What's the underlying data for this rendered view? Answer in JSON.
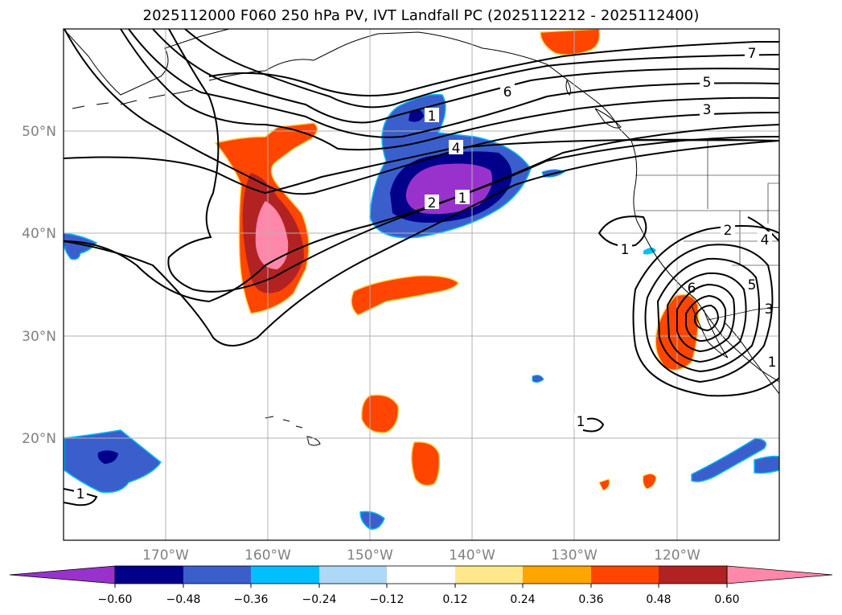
{
  "title": "2025112000 F060 250 hPa PV, IVT Landfall PC (2025112212 - 2025112400)",
  "lat_labels": [
    "50°N",
    "40°N",
    "30°N",
    "20°N"
  ],
  "lon_labels": [
    "170°W",
    "160°W",
    "150°W",
    "140°W",
    "130°W",
    "120°W"
  ],
  "colorbar": {
    "ticks": [
      "−0.60",
      "−0.48",
      "−0.36",
      "−0.24",
      "−0.12",
      "0.12",
      "0.24",
      "0.36",
      "0.48",
      "0.60"
    ],
    "colors": [
      "#9932cc",
      "#00008b",
      "#3a5fcd",
      "#00bfff",
      "#add8f6",
      "#ffffff",
      "#ffe88a",
      "#ffa500",
      "#ff4500",
      "#b22222",
      "#ff88aa"
    ]
  },
  "contour_labels": [
    "7",
    "5",
    "3",
    "6",
    "1",
    "4",
    "2",
    "1",
    "1",
    "2",
    "4",
    "6",
    "5",
    "3",
    "1",
    "1",
    "1"
  ],
  "colors": {
    "frame": "#000000",
    "grid": "#b0b0b0",
    "contour": "#000000"
  }
}
